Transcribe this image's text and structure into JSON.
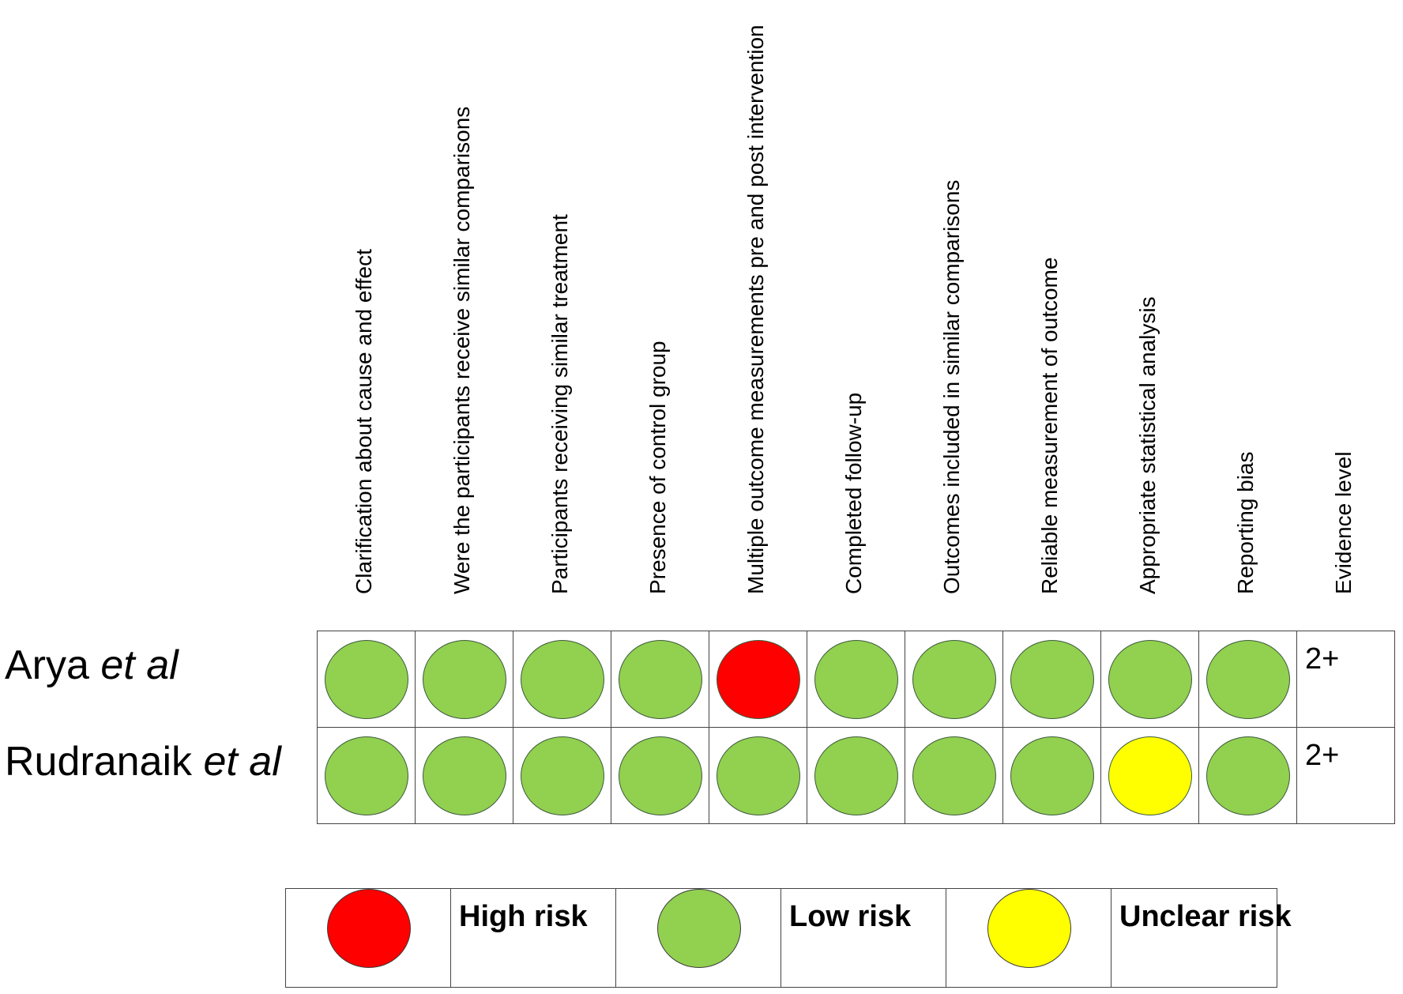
{
  "columns": [
    "Clarification about cause and effect",
    "Were the participants receive similar comparisons",
    "Participants receiving similar treatment",
    "Presence of control group",
    "Multiple outcome measurements pre and post intervention",
    "Completed follow-up",
    "Outcomes included in similar comparisons",
    "Reliable measurement of outcome",
    "Appropriate statistical analysis",
    "Reporting bias",
    "Evidence level"
  ],
  "studies": [
    {
      "name": "Arya ",
      "suffix": "et al",
      "ratings": [
        "low",
        "low",
        "low",
        "low",
        "high",
        "low",
        "low",
        "low",
        "low",
        "low"
      ],
      "evidence": "2+"
    },
    {
      "name": "Rudranaik ",
      "suffix": "et al",
      "ratings": [
        "low",
        "low",
        "low",
        "low",
        "low",
        "low",
        "low",
        "low",
        "unclear",
        "low"
      ],
      "evidence": "2+"
    }
  ],
  "legend": [
    {
      "key": "high",
      "label": "High risk"
    },
    {
      "key": "low",
      "label": "Low risk"
    },
    {
      "key": "unclear",
      "label": "Unclear risk"
    }
  ],
  "colors": {
    "high": "#ff0000",
    "low": "#92d050",
    "unclear": "#ffff00"
  }
}
